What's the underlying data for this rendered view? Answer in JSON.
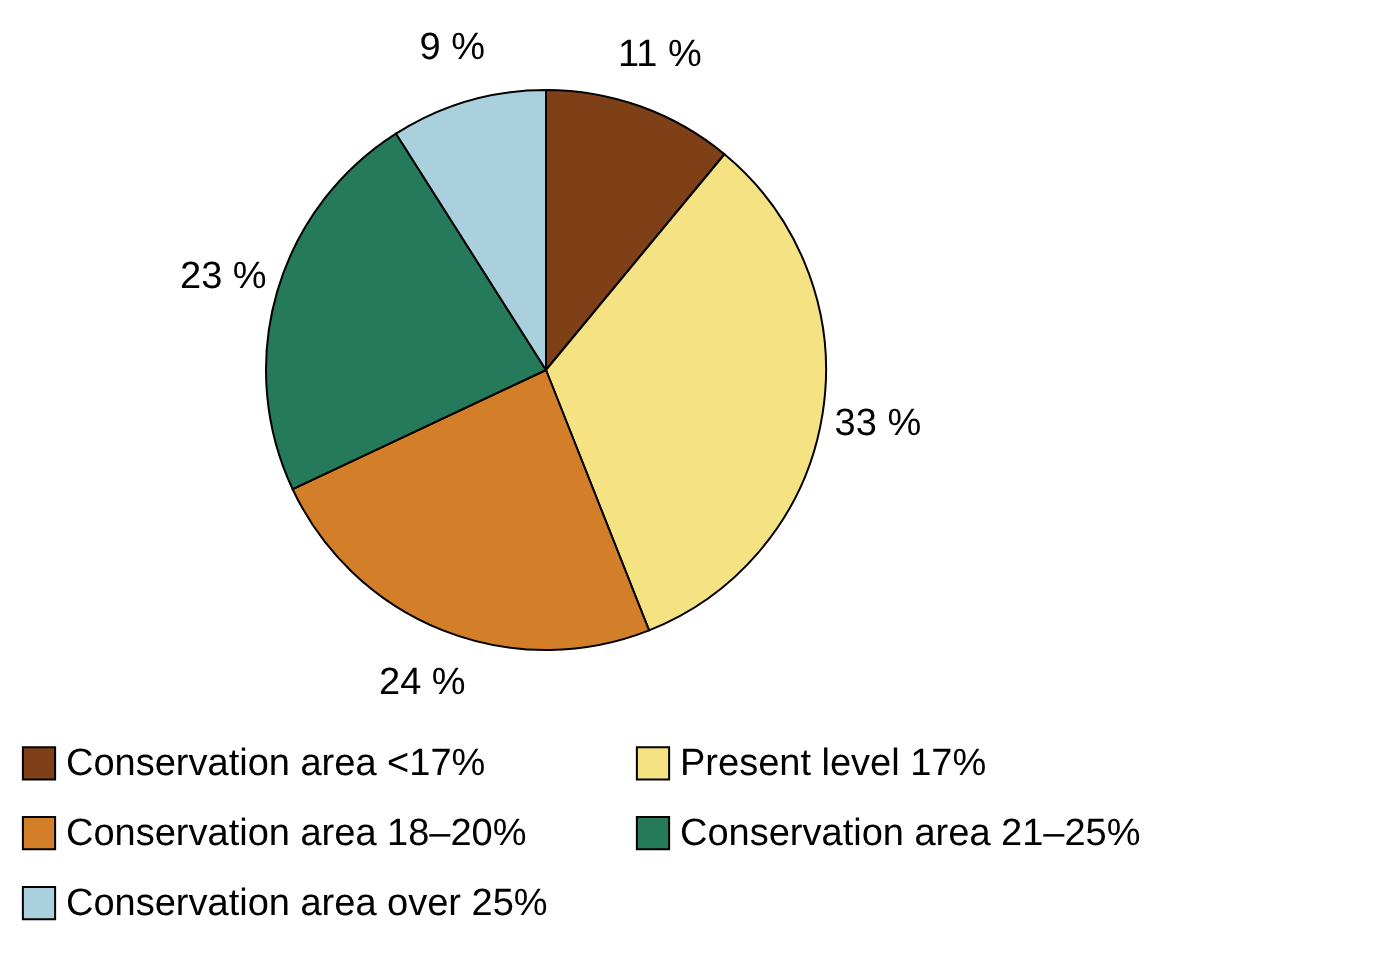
{
  "chart_data": {
    "type": "pie",
    "categories": [
      "Conservation area <17%",
      "Present level 17%",
      "Conservation area 18–20%",
      "Conservation area 21–25%",
      "Conservation area over 25%"
    ],
    "values": [
      11,
      33,
      24,
      23,
      9
    ],
    "value_labels": [
      "11 %",
      "33 %",
      "24 %",
      "23 %",
      "9 %"
    ],
    "colors": [
      "#7f3f17",
      "#f5e383",
      "#d37f2a",
      "#257a5b",
      "#a9d0dc"
    ],
    "legend": "bottom"
  }
}
